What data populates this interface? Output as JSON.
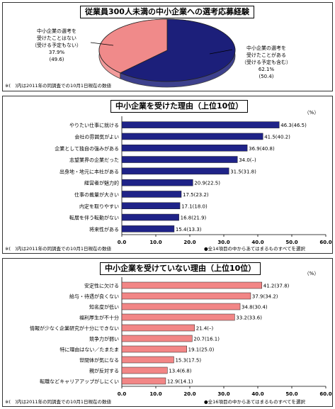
{
  "colors": {
    "navy": "#1c1f7a",
    "pink": "#f08a8a",
    "bar_navy": "#1f2388",
    "bar_pink": "#f28686",
    "grid": "#777777"
  },
  "chart_data": [
    {
      "type": "pie",
      "title": "従業員300人未満の中小企業への選考応募経験",
      "slices": [
        {
          "label_lines": [
            "中小企業の選考を",
            "受けたことがある",
            "（受ける予定も含む）"
          ],
          "value": 62.1,
          "prev": "(50.4)",
          "value_text": "62.1%",
          "color": "#1c1f7a"
        },
        {
          "label_lines": [
            "中小企業の選考を",
            "受けたことはない",
            "（受ける予定もない）"
          ],
          "value": 37.9,
          "prev": "(49.6)",
          "value_text": "37.9%",
          "color": "#f08a8a"
        }
      ],
      "note": "※(　)内は2011年の同調査での10月1日現在の数値"
    },
    {
      "type": "bar",
      "orientation": "horizontal",
      "title": "中小企業を受けた理由（上位10位）",
      "unit": "（%）",
      "categories": [
        "やりたい仕事に就ける",
        "会社の雰囲気がよい",
        "企業として独自の強みがある",
        "志望業界の企業だった",
        "出身地・地元に本社がある",
        "経営者が魅力的",
        "仕事の裁量が大きい",
        "内定を取りやすい",
        "転居を伴う転勤がない",
        "将来性がある"
      ],
      "values": [
        46.3,
        41.5,
        36.9,
        34.0,
        31.5,
        20.9,
        17.5,
        17.1,
        16.8,
        15.4
      ],
      "value_labels": [
        "46.3(46.5)",
        "41.5(40.2)",
        "36.9(40.8)",
        "34.0(–)",
        "31.5(31.8)",
        "20.9(22.5)",
        "17.5(23.2)",
        "17.1(18.0)",
        "16.8(21.9)",
        "15.4(13.3)"
      ],
      "xlim": [
        0,
        60
      ],
      "ticks": [
        "0.0",
        "10.0",
        "20.0",
        "30.0",
        "40.0",
        "50.0",
        "60.0"
      ],
      "note_left": "※(　)内は2011年の同調査での10月1日現在の数値",
      "note_right": "●全14項目の中からあてはまるものすべてを選択"
    },
    {
      "type": "bar",
      "orientation": "horizontal",
      "title": "中小企業を受けていない理由（上位10位）",
      "unit": "（%）",
      "categories": [
        "安定性に欠ける",
        "給与・待遇が良くない",
        "知名度が低い",
        "福利厚生が不十分",
        "情報が少なく企業研究が十分にできない",
        "競争力が弱い",
        "特に理由はない／たまたま",
        "世間体が気になる",
        "親が反対する",
        "転職などキャリアアップがしにくい"
      ],
      "values": [
        41.2,
        37.9,
        34.8,
        33.2,
        21.4,
        20.7,
        19.1,
        15.3,
        13.4,
        12.9
      ],
      "value_labels": [
        "41.2(37.8)",
        "37.9(34.2)",
        "34.8(30.4)",
        "33.2(33.6)",
        "21.4(–)",
        "20.7(16.1)",
        "19.1(25.0)",
        "15.3(17.5)",
        "13.4(6.8)",
        "12.9(14.1)"
      ],
      "xlim": [
        0,
        60
      ],
      "ticks": [
        "0.0",
        "10.0",
        "20.0",
        "30.0",
        "40.0",
        "50.0",
        "60.0"
      ],
      "note_left": "※(　)内は2011年の同調査での10月1日現在の数値",
      "note_right": "●全16項目の中からあてはまるものすべてを選択"
    }
  ]
}
